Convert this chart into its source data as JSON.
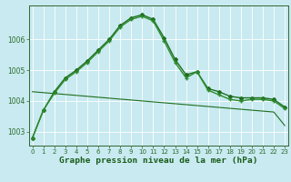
{
  "line1_x": [
    0,
    1,
    2,
    3,
    4,
    5,
    6,
    7,
    8,
    9,
    10,
    11,
    12,
    13,
    14,
    15,
    16,
    17,
    18,
    19,
    20,
    21,
    22,
    23
  ],
  "line1_y": [
    1002.8,
    1003.7,
    1004.3,
    1004.75,
    1005.0,
    1005.3,
    1005.65,
    1006.0,
    1006.45,
    1006.7,
    1006.8,
    1006.65,
    1006.05,
    1005.35,
    1004.85,
    1004.95,
    1004.4,
    1004.3,
    1004.15,
    1004.1,
    1004.1,
    1004.1,
    1004.05,
    1003.8
  ],
  "line1_color": "#1e6e1e",
  "line2_x": [
    0,
    1,
    2,
    3,
    4,
    5,
    6,
    7,
    8,
    9,
    10,
    11,
    12,
    13,
    14,
    15,
    16,
    17,
    18,
    19,
    20,
    21,
    22,
    23
  ],
  "line2_y": [
    1002.8,
    1003.7,
    1004.25,
    1004.7,
    1004.95,
    1005.25,
    1005.6,
    1005.95,
    1006.4,
    1006.65,
    1006.75,
    1006.6,
    1005.95,
    1005.25,
    1004.75,
    1004.95,
    1004.35,
    1004.2,
    1004.05,
    1004.0,
    1004.05,
    1004.05,
    1004.0,
    1003.75
  ],
  "line2_color": "#2d8b2d",
  "line3_x": [
    0,
    1,
    2,
    3,
    4,
    5,
    6,
    7,
    8,
    9,
    10,
    11,
    12,
    13,
    14,
    15,
    16,
    17,
    18,
    19,
    20,
    21,
    22,
    23
  ],
  "line3_y": [
    1004.3,
    1004.27,
    1004.24,
    1004.21,
    1004.18,
    1004.15,
    1004.12,
    1004.09,
    1004.06,
    1004.03,
    1004.0,
    1003.97,
    1003.94,
    1003.91,
    1003.88,
    1003.85,
    1003.82,
    1003.79,
    1003.76,
    1003.73,
    1003.7,
    1003.67,
    1003.64,
    1003.2
  ],
  "line3_color": "#1e6e1e",
  "ylim_min": 1002.55,
  "ylim_max": 1007.1,
  "xlim_min": -0.3,
  "xlim_max": 23.3,
  "yticks": [
    1003,
    1004,
    1005,
    1006
  ],
  "xticks": [
    0,
    1,
    2,
    3,
    4,
    5,
    6,
    7,
    8,
    9,
    10,
    11,
    12,
    13,
    14,
    15,
    16,
    17,
    18,
    19,
    20,
    21,
    22,
    23
  ],
  "xlabel": "Graphe pression niveau de la mer (hPa)",
  "bg_color": "#c8eaf0",
  "grid_color": "#ffffff",
  "spine_color": "#336633",
  "tick_color": "#2d6b2d",
  "xlabel_color": "#1a5c1a",
  "tick_fontsize": 5.0,
  "xlabel_fontsize": 6.8,
  "line1_lw": 1.0,
  "line2_lw": 1.0,
  "line3_lw": 0.8,
  "marker1": "D",
  "marker1_size": 2.0,
  "marker2": "P",
  "marker2_size": 3.0
}
